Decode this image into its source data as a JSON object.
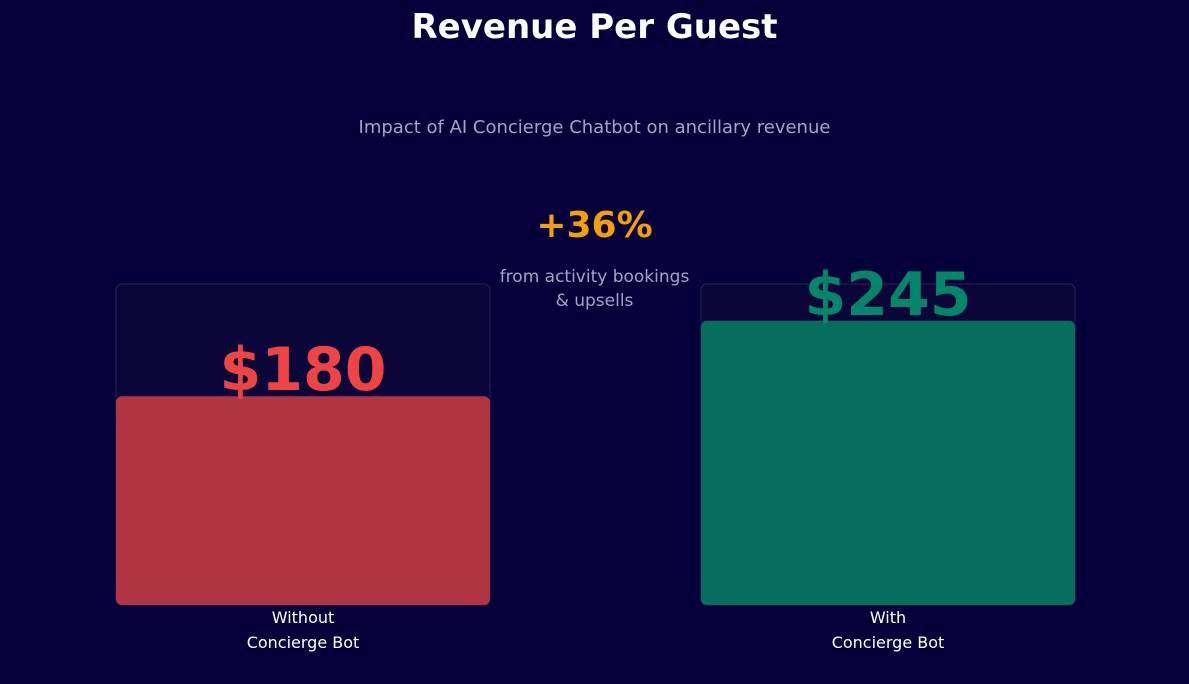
{
  "chart_data": {
    "type": "bar",
    "title": "Revenue Per Guest",
    "subtitle": "Impact of AI Concierge Chatbot on ancillary revenue",
    "categories": [
      [
        "Without",
        "Concierge Bot"
      ],
      [
        "With",
        "Concierge Bot"
      ]
    ],
    "values": [
      180,
      245
    ],
    "value_labels": [
      "$180",
      "$245"
    ],
    "ylim": [
      0,
      260
    ],
    "bar_colors": [
      "#b13443",
      "#076e5d"
    ],
    "label_colors": [
      "#ef4444",
      "#03866a"
    ],
    "track_color": "#0b063a",
    "annotation": {
      "value": "+36%",
      "lines": [
        "from activity bookings",
        "& upsells"
      ],
      "color": "#f59e0b"
    },
    "grid": false,
    "legend": "none"
  },
  "colors": {
    "background": "#06003a",
    "title": "#ffffff",
    "subtitle": "#a7a3c4",
    "category_label": "#ffffff"
  }
}
